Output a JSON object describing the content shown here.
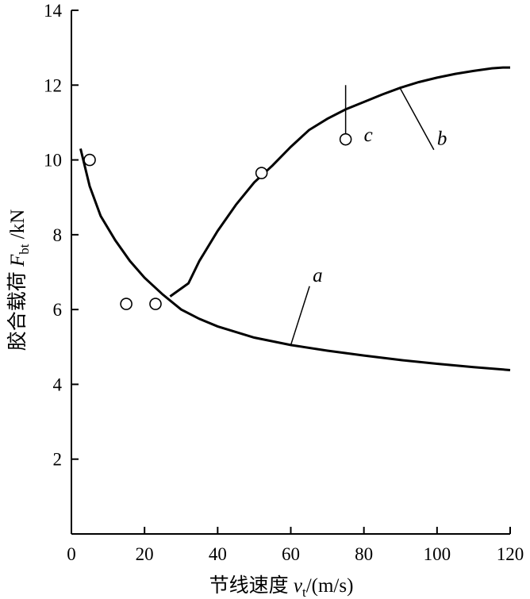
{
  "chart_data": {
    "type": "line",
    "xlabel": "节线速度 v_t/(m/s)",
    "ylabel": "胶合载荷 F_bt /kN",
    "xlim": [
      0,
      120
    ],
    "ylim": [
      0,
      14
    ],
    "xticks": [
      0,
      20,
      40,
      60,
      80,
      100,
      120
    ],
    "yticks": [
      2,
      4,
      6,
      8,
      10,
      12,
      14
    ],
    "grid": false,
    "series": [
      {
        "name": "a",
        "x": [
          2.5,
          5,
          8,
          12,
          16,
          20,
          25,
          30,
          35,
          40,
          50,
          60,
          70,
          80,
          90,
          100,
          110,
          120
        ],
        "y": [
          10.3,
          9.3,
          8.5,
          7.85,
          7.3,
          6.85,
          6.4,
          6.0,
          5.75,
          5.55,
          5.25,
          5.05,
          4.9,
          4.77,
          4.65,
          4.55,
          4.46,
          4.38
        ]
      },
      {
        "name": "b",
        "x": [
          27,
          32,
          35,
          40,
          45,
          50,
          55,
          60,
          65,
          70,
          75,
          80,
          85,
          90,
          95,
          100,
          105,
          110,
          115,
          118,
          120
        ],
        "y": [
          6.35,
          6.7,
          7.3,
          8.1,
          8.8,
          9.4,
          9.85,
          10.35,
          10.8,
          11.1,
          11.35,
          11.55,
          11.75,
          11.93,
          12.08,
          12.2,
          12.3,
          12.38,
          12.45,
          12.47,
          12.47
        ]
      }
    ],
    "markers": {
      "x": [
        5,
        15,
        23,
        52,
        75
      ],
      "y": [
        10.0,
        6.15,
        6.15,
        9.65,
        10.55
      ],
      "error_bar": {
        "x": 75,
        "y_high": 12.0
      }
    },
    "curve_labels": [
      {
        "text": "a",
        "x": 66,
        "y": 6.75,
        "leader_to": {
          "x": 60,
          "y": 5.05
        }
      },
      {
        "text": "b",
        "x": 100,
        "y": 10.4,
        "leader_to": {
          "x": 90,
          "y": 11.9
        }
      },
      {
        "text": "c",
        "x": 80,
        "y": 10.5
      }
    ]
  }
}
